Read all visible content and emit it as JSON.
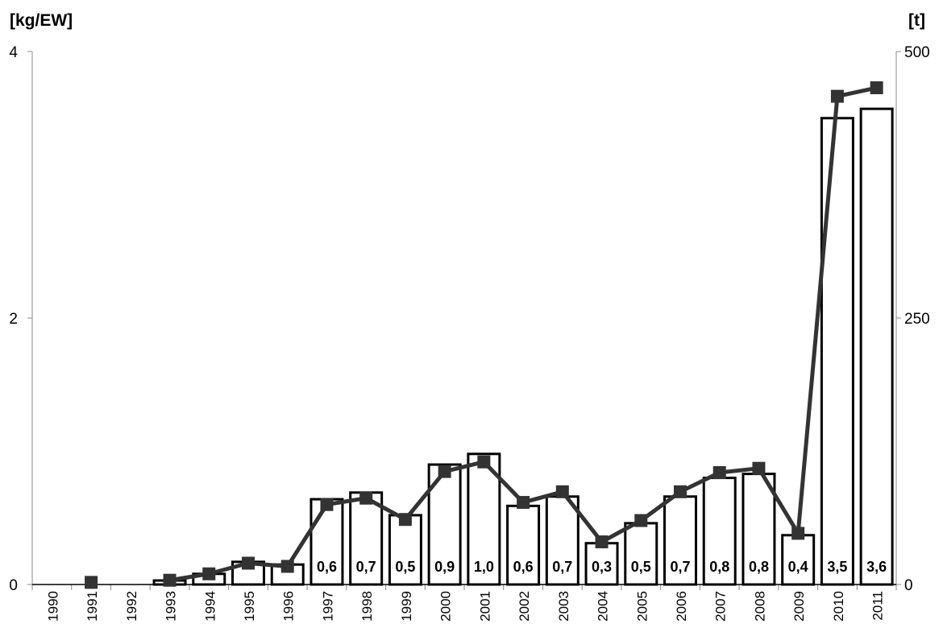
{
  "chart_data": {
    "type": "bar",
    "categories": [
      "1990",
      "1991",
      "1992",
      "1993",
      "1994",
      "1995",
      "1996",
      "1997",
      "1998",
      "1999",
      "2000",
      "2001",
      "2002",
      "2003",
      "2004",
      "2005",
      "2006",
      "2007",
      "2008",
      "2009",
      "2010",
      "2011"
    ],
    "series": [
      {
        "type": "bar",
        "axis": "left",
        "values": [
          0,
          0,
          0,
          0.03,
          0.08,
          0.17,
          0.15,
          0.64,
          0.69,
          0.52,
          0.9,
          0.98,
          0.59,
          0.66,
          0.31,
          0.46,
          0.66,
          0.8,
          0.83,
          0.37,
          3.5,
          3.57
        ],
        "data_labels": [
          "",
          "",
          "",
          "",
          "",
          "",
          "",
          "0,6",
          "0,7",
          "0,5",
          "0,9",
          "1,0",
          "0,6",
          "0,7",
          "0,3",
          "0,5",
          "0,7",
          "0,8",
          "0,8",
          "0,4",
          "3,5",
          "3,6"
        ],
        "color": "#ffffff",
        "stroke": "#000000"
      },
      {
        "type": "line",
        "axis": "right",
        "values": [
          null,
          2,
          null,
          4,
          10,
          20,
          17,
          75,
          81,
          61,
          106,
          115,
          77,
          87,
          40,
          60,
          87,
          105,
          109,
          48,
          458,
          466
        ],
        "color": "#333333",
        "marker": "square"
      }
    ],
    "ylabel": "[kg/EW]",
    "ylabel_right": "[t]",
    "ylim": [
      0,
      4
    ],
    "ylim_right": [
      0,
      500
    ],
    "yticks": [
      "0",
      "2",
      "4"
    ],
    "yticks_right": [
      "0",
      "250",
      "500"
    ],
    "grid": false,
    "legend": "none"
  }
}
